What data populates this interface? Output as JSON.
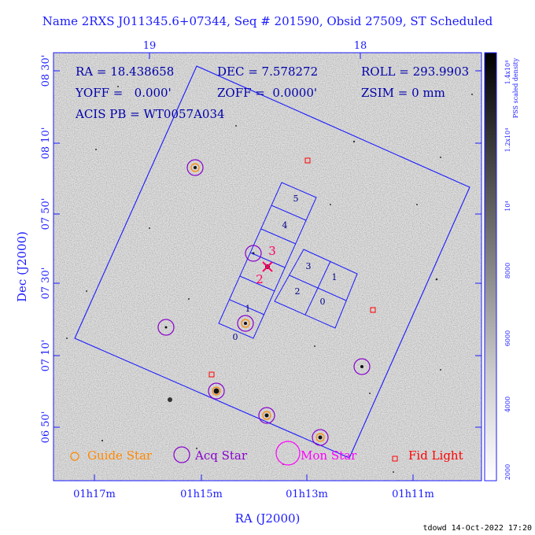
{
  "title": "Name 2RXS J011345.6+07344, Seq # 201590, Obsid 27509, ST Scheduled",
  "info": {
    "ra": "RA = 18.438658",
    "dec": "DEC = 7.578272",
    "roll": "ROLL = 293.9903",
    "yoff": "YOFF =   0.000'",
    "zoff": "ZOFF =  0.0000'",
    "zsim": "ZSIM = 0 mm",
    "acis": "ACIS PB = WT0057A034"
  },
  "axes": {
    "xlabel": "RA (J2000)",
    "ylabel": "Dec (J2000)",
    "top_ticks": [
      "19",
      "18"
    ],
    "bottom_ticks": [
      "01h17m",
      "01h15m",
      "01h13m",
      "01h11m"
    ],
    "left_ticks": [
      "08 30'",
      "08 10'",
      "07 50'",
      "07 30'",
      "07 10'",
      "06 50'"
    ]
  },
  "colorbar": {
    "label": "PSS scaled density",
    "ticks": [
      "2000",
      "4000",
      "6000",
      "8000",
      "10⁴",
      "1.2x10⁴",
      "1.4x10⁴"
    ]
  },
  "chips": {
    "aci": [
      "0",
      "1",
      "2",
      "3"
    ],
    "acis_s": [
      "0",
      "1",
      "2",
      "3",
      "4",
      "5"
    ]
  },
  "target_labels": [
    "2",
    "3"
  ],
  "legend": [
    {
      "label": "Guide Star",
      "color": "#ff8800"
    },
    {
      "label": "Acq Star",
      "color": "#8800cc"
    },
    {
      "label": "Mon Star",
      "color": "#ff00ff"
    },
    {
      "label": "Fid Light",
      "color": "#ff0000"
    }
  ],
  "footer": "tdowd 14-Oct-2022 17:20",
  "colors": {
    "frame": "#1a1aff",
    "text": "#0000aa",
    "guide": "#ff8800",
    "acq": "#8800cc",
    "mon": "#ff00ff",
    "fid": "#ff0000"
  }
}
